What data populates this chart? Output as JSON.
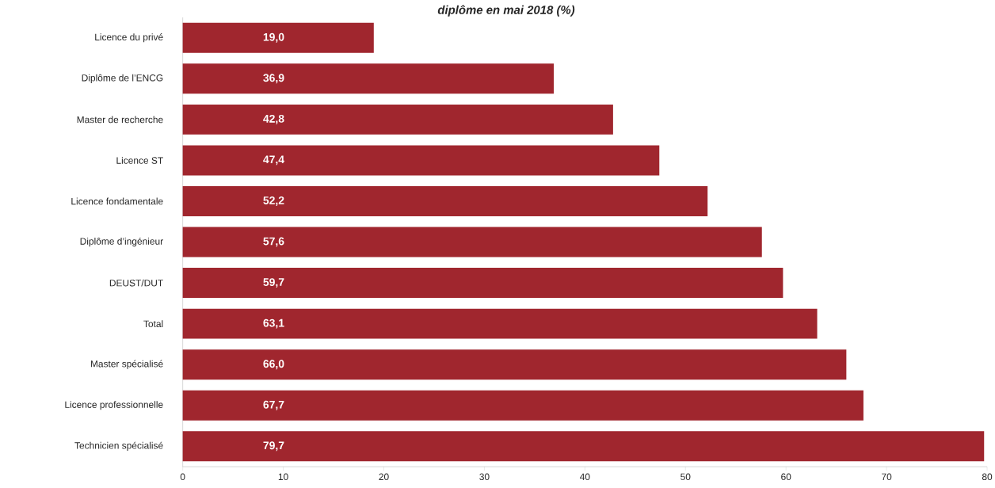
{
  "chart_data": {
    "type": "bar",
    "orientation": "horizontal",
    "title": "diplôme en mai 2018 (%)",
    "categories": [
      "Licence du privé",
      "Diplôme de l’ENCG",
      "Master de recherche",
      "Licence ST",
      "Licence fondamentale",
      "Diplôme d’ingénieur",
      "DEUST/DUT",
      "Total",
      "Master spécialisé",
      "Licence professionnelle",
      "Technicien spécialisé"
    ],
    "values": [
      19.0,
      36.9,
      42.8,
      47.4,
      52.2,
      57.6,
      59.7,
      63.1,
      66.0,
      67.7,
      79.7
    ],
    "value_labels": [
      "19,0",
      "36,9",
      "42,8",
      "47,4",
      "52,2",
      "57,6",
      "59,7",
      "63,1",
      "66,0",
      "67,7",
      "79,7"
    ],
    "color": "#a0262e",
    "xlim": [
      0,
      80
    ],
    "xticks": [
      0,
      10,
      20,
      30,
      40,
      50,
      60,
      70,
      80
    ],
    "grid": false
  }
}
